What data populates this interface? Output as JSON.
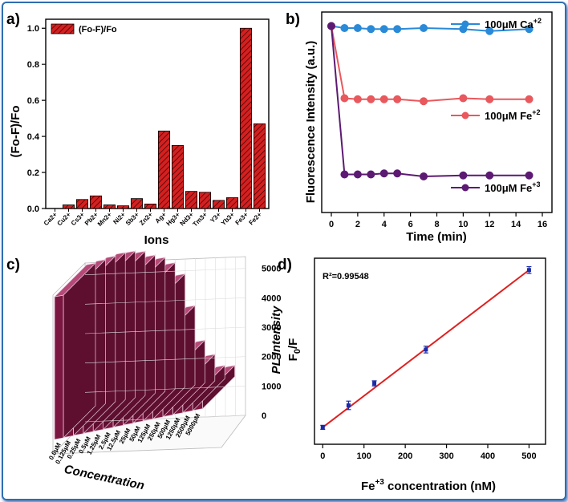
{
  "panels": {
    "a": "a)",
    "b": "b)",
    "c": "c)",
    "d": "d)"
  },
  "colors": {
    "barRed": "#d42020",
    "blue": "#2a8ad8",
    "red": "#e8585c",
    "purple": "#5c1a72",
    "maroon": "#7a1640",
    "fitLine": "#e02020",
    "dpoint": "#1a2aa8"
  },
  "chart_data": [
    {
      "id": "a",
      "type": "bar",
      "legend": "(Fo-F)/Fo",
      "xlabel": "Ions",
      "ylabel": "(Fo-F)/Fo",
      "categories": [
        "Ca2+",
        "Cu2+",
        "Cs3+",
        "Pb2+",
        "Mn2+",
        "Ni2+",
        "Sb3+",
        "Zn2+",
        "Ag+",
        "Hg3+",
        "Nd3+",
        "Tm3+",
        "Y3+",
        "Yb3+",
        "Fe3+",
        "Fe2+"
      ],
      "values": [
        0.0,
        0.02,
        0.05,
        0.07,
        0.02,
        0.015,
        0.055,
        0.025,
        0.43,
        0.35,
        0.095,
        0.09,
        0.045,
        0.06,
        1.0,
        0.47
      ],
      "ylim": [
        0,
        1.05
      ],
      "yticks": [
        "0.0",
        "0.2",
        "0.4",
        "0.6",
        "0.8",
        "1.0"
      ]
    },
    {
      "id": "b",
      "type": "line",
      "xlabel": "Time (min)",
      "ylabel": "Fluorescence Intensity  (a.u.)",
      "x": [
        0,
        1,
        2,
        3,
        4,
        5,
        7,
        10,
        12,
        15
      ],
      "xticks": [
        "0",
        "2",
        "4",
        "6",
        "8",
        "10",
        "12",
        "14",
        "16"
      ],
      "series": [
        {
          "name": "100μM Ca",
          "sup": "+2",
          "values": [
            0.93,
            0.92,
            0.92,
            0.915,
            0.915,
            0.915,
            0.92,
            0.915,
            0.905,
            0.915
          ]
        },
        {
          "name": "100μM Fe",
          "sup": "+2",
          "values": [
            0.93,
            0.57,
            0.565,
            0.565,
            0.565,
            0.565,
            0.555,
            0.57,
            0.565,
            0.565
          ]
        },
        {
          "name": "100μM Fe",
          "sup": "+3",
          "values": [
            0.93,
            0.19,
            0.19,
            0.19,
            0.195,
            0.195,
            0.18,
            0.185,
            0.185,
            0.185
          ]
        }
      ],
      "ylim": [
        0,
        1.0
      ]
    },
    {
      "id": "c",
      "type": "bar",
      "xlabel": "Concentration",
      "ylabel": "PL Intensity",
      "categories": [
        "0.0μM",
        "0.125μM",
        "0.25μM",
        "0.5μM",
        "1.25μM",
        "2.5μM",
        "12.5μM",
        "25μM",
        "50μM",
        "125μM",
        "250μM",
        "500μM",
        "1250μM",
        "2500μM",
        "5000μM"
      ],
      "values": [
        4850,
        4900,
        4950,
        5000,
        4980,
        4900,
        4700,
        4550,
        4300,
        3850,
        2700,
        1450,
        900,
        450,
        380
      ],
      "zticks": [
        "0",
        "1000",
        "2000",
        "3000",
        "4000",
        "5000"
      ],
      "zlim": [
        0,
        5400
      ]
    },
    {
      "id": "d",
      "type": "scatter",
      "annotation": "R²=0.99548",
      "xlabel": "Fe+3 concentration (nM)",
      "xlabel_parts": {
        "pre": "Fe",
        "sup": "+3",
        "post": " concentration (nM)"
      },
      "ylabel_parts": {
        "pre": "F",
        "sub": "0",
        "post": "/F"
      },
      "x": [
        0,
        62.5,
        125,
        250,
        500
      ],
      "values": [
        1.0,
        1.13,
        1.26,
        1.46,
        1.93
      ],
      "errors": [
        0.012,
        0.025,
        0.015,
        0.02,
        0.02
      ],
      "fit": {
        "x": [
          0,
          500
        ],
        "y": [
          1.0,
          1.93
        ]
      },
      "xticks": [
        "0",
        "100",
        "200",
        "300",
        "400",
        "500"
      ],
      "xlim": [
        -20,
        540
      ],
      "ylim": [
        0.9,
        2.0
      ]
    }
  ]
}
